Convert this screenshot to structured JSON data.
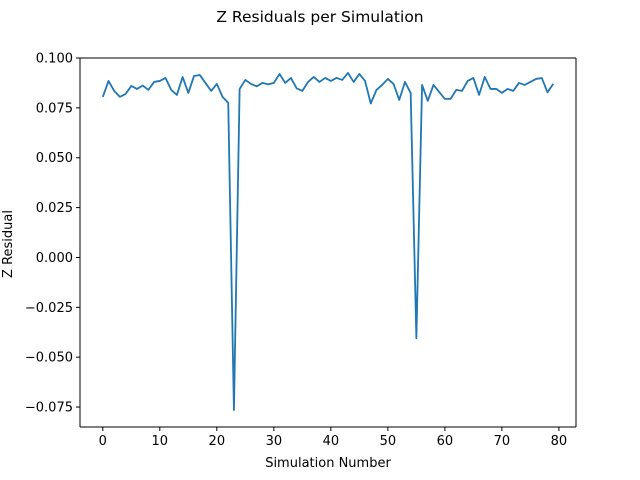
{
  "chart_data": {
    "type": "line",
    "title": "Z Residuals per Simulation",
    "xlabel": "Simulation Number",
    "ylabel": "Z Residual",
    "xlim": [
      -4,
      83
    ],
    "ylim": [
      -0.085,
      0.1
    ],
    "grid": false,
    "legend": "none",
    "x_ticks": [
      0,
      10,
      20,
      30,
      40,
      50,
      60,
      70,
      80
    ],
    "x_tick_labels": [
      "0",
      "10",
      "20",
      "30",
      "40",
      "50",
      "60",
      "70",
      "80"
    ],
    "y_ticks": [
      -0.075,
      -0.05,
      -0.025,
      0.0,
      0.025,
      0.05,
      0.075,
      0.1
    ],
    "y_tick_labels": [
      "−0.075",
      "−0.050",
      "−0.025",
      "0.000",
      "0.025",
      "0.050",
      "0.075",
      "0.100"
    ],
    "series": [
      {
        "color": "#1f77b4",
        "x": [
          0,
          1,
          2,
          3,
          4,
          5,
          6,
          7,
          8,
          9,
          10,
          11,
          12,
          13,
          14,
          15,
          16,
          17,
          18,
          19,
          20,
          21,
          22,
          23,
          24,
          25,
          26,
          27,
          28,
          29,
          30,
          31,
          32,
          33,
          34,
          35,
          36,
          37,
          38,
          39,
          40,
          41,
          42,
          43,
          44,
          45,
          46,
          47,
          48,
          49,
          50,
          51,
          52,
          53,
          54,
          55,
          56,
          57,
          58,
          59,
          60,
          61,
          62,
          63,
          64,
          65,
          66,
          67,
          68,
          69,
          70,
          71,
          72,
          73,
          74,
          75,
          76,
          77,
          78,
          79
        ],
        "values": [
          0.0805,
          0.0885,
          0.0835,
          0.0805,
          0.082,
          0.086,
          0.0845,
          0.0862,
          0.084,
          0.088,
          0.0885,
          0.09,
          0.084,
          0.0815,
          0.0905,
          0.0825,
          0.091,
          0.0915,
          0.0875,
          0.0835,
          0.087,
          0.0805,
          0.0775,
          -0.0765,
          0.0845,
          0.089,
          0.087,
          0.0858,
          0.0875,
          0.0868,
          0.0875,
          0.092,
          0.0875,
          0.09,
          0.0848,
          0.0835,
          0.088,
          0.0905,
          0.088,
          0.09,
          0.0885,
          0.09,
          0.089,
          0.0925,
          0.088,
          0.092,
          0.0885,
          0.0772,
          0.084,
          0.0865,
          0.0895,
          0.087,
          0.079,
          0.088,
          0.0825,
          -0.0405,
          0.0865,
          0.0785,
          0.0865,
          0.083,
          0.0795,
          0.0795,
          0.084,
          0.0835,
          0.0885,
          0.09,
          0.0815,
          0.0905,
          0.0845,
          0.0845,
          0.0825,
          0.0845,
          0.0835,
          0.0875,
          0.0865,
          0.088,
          0.0895,
          0.09,
          0.0828,
          0.087
        ]
      }
    ]
  }
}
